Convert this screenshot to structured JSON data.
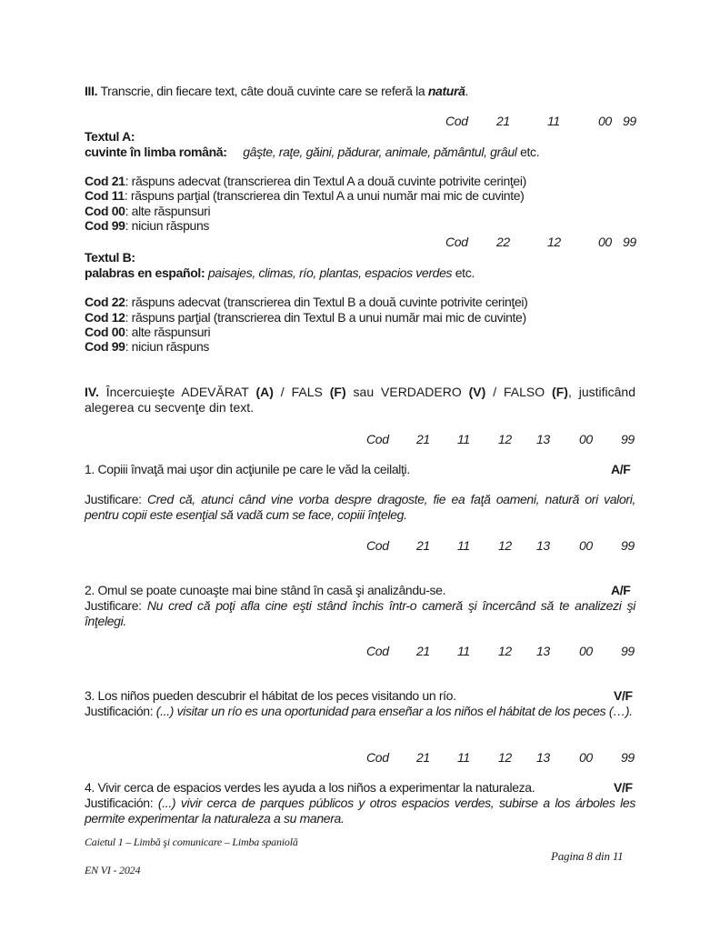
{
  "s3": {
    "num": "III.",
    "prompt": "Transcrie, din fiecare text, câte două cuvinte care se referă la ",
    "prompt_em": "natură",
    "prompt_end": ".",
    "codesA": [
      "Cod",
      "21",
      "11",
      "00",
      "99"
    ],
    "textA_title": "Textul A:",
    "textA_label": "cuvinte în limba română:",
    "textA_words": "gâşte, raţe, găini, pădurar, animale, pământul, grâul",
    "etc": " etc.",
    "rubricA": [
      {
        "code": "Cod 21",
        "desc": ": răspuns adecvat (transcrierea din Textul A a două cuvinte potrivite cerinţei)"
      },
      {
        "code": "Cod 11",
        "desc": ": răspuns parţial (transcrierea din Textul A a unui număr mai mic de cuvinte)"
      },
      {
        "code": "Cod 00",
        "desc": ": alte răspunsuri"
      },
      {
        "code": "Cod 99",
        "desc": ": niciun răspuns"
      }
    ],
    "codesB": [
      "Cod",
      "22",
      "12",
      "00",
      "99"
    ],
    "textB_title": "Textul B:",
    "textB_label": "palabras en español:",
    "textB_words": "paisajes, climas, río, plantas, espacios verdes",
    "rubricB": [
      {
        "code": "Cod 22",
        "desc": ": răspuns adecvat (transcrierea din Textul B a două cuvinte potrivite cerinţei)"
      },
      {
        "code": "Cod 12",
        "desc": ": răspuns parţial (transcrierea din Textul B a unui număr mai mic de cuvinte)"
      },
      {
        "code": "Cod 00",
        "desc": ": alte răspunsuri"
      },
      {
        "code": "Cod 99",
        "desc": ": niciun răspuns"
      }
    ]
  },
  "s4": {
    "num": "IV.",
    "p1": " Încercuieşte ADEVĂRAT ",
    "a": "(A)",
    "p2": " / FALS ",
    "f": "(F)",
    "p3": " sau VERDADERO ",
    "v": "(V)",
    "p4": " / FALSO ",
    "f2": "(F)",
    "p5": ", justificând alegerea cu secvenţe din text.",
    "codes": [
      "Cod",
      "21",
      "11",
      "12",
      "13",
      "00",
      "99"
    ],
    "items": [
      {
        "statement": "1. Copiii învaţă mai uşor din acţiunile pe care le văd la ceilalţi.",
        "choice": "A/F",
        "label": "Justificare: ",
        "text": "Cred că, atunci când vine vorba despre dragoste, fie ea faţă oameni, natură ori valori, pentru copii este esenţial să vadă cum se face, copiii înţeleg."
      },
      {
        "statement": "2. Omul se poate cunoaşte mai bine stând în casă şi analizându-se.",
        "choice": "A/F",
        "label": "Justificare: ",
        "text": "Nu cred că poţi afla cine eşti stând închis într-o cameră şi încercând să te analizezi şi înţelegi."
      },
      {
        "statement": "3. Los niños pueden descubrir el hábitat de los peces visitando un río.",
        "choice": "V/F",
        "label": "Justificación: ",
        "text": "(...) visitar un río es una oportunidad para enseñar a los niños el hábitat de los peces (…)."
      },
      {
        "statement": "4. Vivir cerca de espacios verdes les ayuda a los niños a experimentar la naturaleza.",
        "choice": "V/F",
        "label": "Justificación: ",
        "text": "(...) vivir cerca de parques públicos y otros espacios verdes, subirse a los árboles les permite experimentar la naturaleza a su manera."
      }
    ]
  },
  "footer": {
    "booklet": "Caietul  1 – Limbă şi comunicare – Limba spaniolă",
    "page": "Pagina 8 din 11",
    "exam": "EN VI - 2024"
  }
}
